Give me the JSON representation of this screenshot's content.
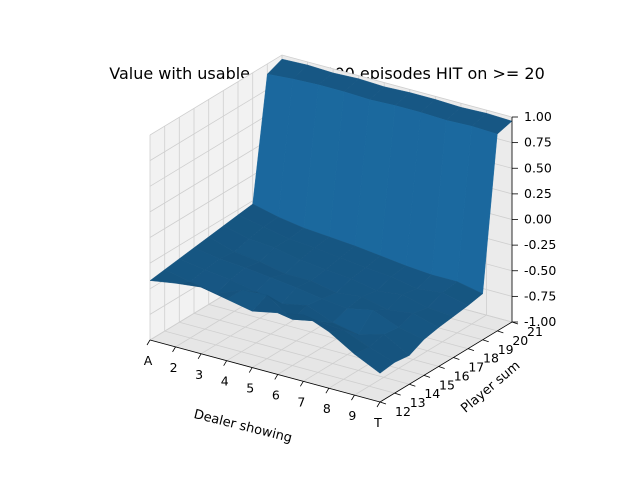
{
  "chart_data": {
    "type": "surface",
    "title": "Value with usable ace 100,000 episodes HIT on >= 20",
    "xlabel": "Dealer showing",
    "ylabel": "Player sum",
    "zlabel": "",
    "x_ticks": [
      "A",
      "2",
      "3",
      "4",
      "5",
      "6",
      "7",
      "8",
      "9",
      "T"
    ],
    "y_ticks": [
      "12",
      "13",
      "14",
      "15",
      "16",
      "17",
      "18",
      "19",
      "20",
      "21"
    ],
    "z_ticks": [
      "-1.00",
      "-0.75",
      "-0.50",
      "-0.25",
      "0.00",
      "0.25",
      "0.50",
      "0.75",
      "1.00"
    ],
    "zlim": [
      -1.0,
      1.0
    ],
    "grid": true,
    "surface_color": "#1f77b4",
    "z": [
      [
        -0.42,
        -0.38,
        -0.35,
        -0.4,
        -0.45,
        -0.4,
        -0.35,
        -0.45,
        -0.6,
        -0.72
      ],
      [
        -0.4,
        -0.45,
        -0.5,
        -0.4,
        -0.38,
        -0.55,
        -0.5,
        -0.52,
        -0.62,
        -0.7
      ],
      [
        -0.38,
        -0.42,
        -0.45,
        -0.5,
        -0.55,
        -0.5,
        -0.6,
        -0.65,
        -0.58,
        -0.72
      ],
      [
        -0.36,
        -0.4,
        -0.42,
        -0.45,
        -0.48,
        -0.52,
        -0.55,
        -0.5,
        -0.6,
        -0.65
      ],
      [
        -0.34,
        -0.42,
        -0.45,
        -0.5,
        -0.5,
        -0.55,
        -0.52,
        -0.58,
        -0.55,
        -0.62
      ],
      [
        -0.32,
        -0.38,
        -0.4,
        -0.45,
        -0.48,
        -0.5,
        -0.55,
        -0.52,
        -0.58,
        -0.6
      ],
      [
        -0.3,
        -0.35,
        -0.4,
        -0.42,
        -0.45,
        -0.48,
        -0.5,
        -0.55,
        -0.52,
        -0.58
      ],
      [
        -0.28,
        -0.34,
        -0.38,
        -0.4,
        -0.42,
        -0.45,
        -0.48,
        -0.5,
        -0.5,
        -0.55
      ],
      [
        0.9,
        0.92,
        0.93,
        0.93,
        0.92,
        0.93,
        0.93,
        0.92,
        0.93,
        0.92
      ],
      [
        0.96,
        0.97,
        0.96,
        0.97,
        0.96,
        0.97,
        0.97,
        0.96,
        0.97,
        0.96
      ]
    ]
  }
}
